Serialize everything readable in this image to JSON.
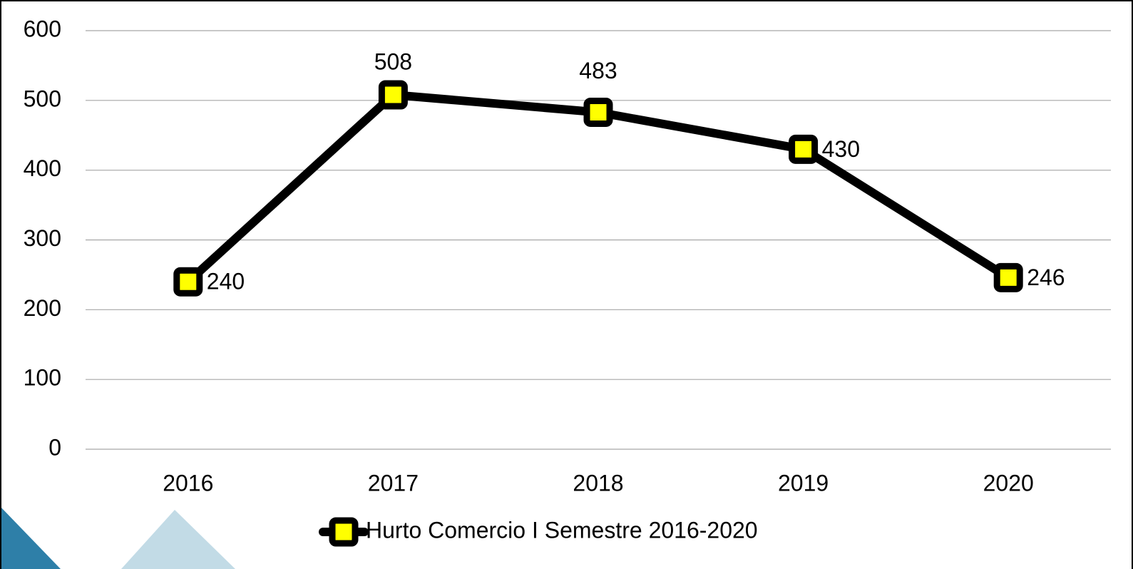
{
  "chart_data": {
    "type": "line",
    "categories": [
      "2016",
      "2017",
      "2018",
      "2019",
      "2020"
    ],
    "series": [
      {
        "name": "Hurto Comercio I Semestre 2016-2020",
        "color": "#000000",
        "marker_fill": "#ffff00",
        "values": [
          240,
          508,
          483,
          430,
          246
        ]
      }
    ],
    "ylim": [
      0,
      600
    ],
    "yticks": [
      0,
      100,
      200,
      300,
      400,
      500,
      600
    ],
    "grid": true,
    "legend": "bottom",
    "data_labels": true
  }
}
